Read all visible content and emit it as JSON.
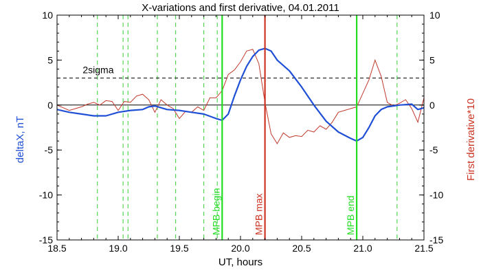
{
  "chart_data": {
    "type": "line",
    "title": "X-variations and first derivative, 04.01.2011",
    "xlabel": "UT, hours",
    "ylabel_left": "deltaX, nT",
    "ylabel_right": "First derivative*10",
    "xlim": [
      18.5,
      21.5
    ],
    "ylim": [
      -15,
      10
    ],
    "x_ticks": [
      18.5,
      19.0,
      19.5,
      20.0,
      20.5,
      21.0,
      21.5
    ],
    "x_tick_labels": [
      "18.5",
      "19.0",
      "19.5",
      "20.0",
      "20.5",
      "21.0",
      "21.5"
    ],
    "y_ticks": [
      -15,
      -10,
      -5,
      0,
      5,
      10
    ],
    "y_tick_labels": [
      "-15",
      "-10",
      "-5",
      "0",
      "5",
      "10"
    ],
    "colors": {
      "deltaX": "#1f4fd6",
      "derivative": "#c0392b",
      "mpb_edges": "#22dd22",
      "mpb_max": "#cc3322",
      "dashed_green": "#33cc33",
      "axis_text_right": "#cc3322",
      "axis_text_left": "#1f4fd6"
    },
    "threshold": {
      "value": 3.0,
      "label": "2sigma",
      "style": "dashed"
    },
    "zero_line": 0,
    "dashed_vertical_lines": [
      18.83,
      19.04,
      19.08,
      19.32,
      19.47,
      19.7,
      19.81,
      21.28
    ],
    "markers": [
      {
        "x": 19.85,
        "label": "MPB begin",
        "color": "#22dd22"
      },
      {
        "x": 20.2,
        "label": "MPB max",
        "color": "#cc3322"
      },
      {
        "x": 20.95,
        "label": "MPB end",
        "color": "#22dd22"
      }
    ],
    "series": [
      {
        "key": "deltaX",
        "x": [
          18.5,
          18.6,
          18.7,
          18.8,
          18.9,
          19.0,
          19.1,
          19.2,
          19.25,
          19.3,
          19.4,
          19.5,
          19.6,
          19.7,
          19.8,
          19.85,
          19.9,
          19.95,
          20.0,
          20.05,
          20.1,
          20.15,
          20.2,
          20.25,
          20.3,
          20.4,
          20.5,
          20.6,
          20.7,
          20.8,
          20.9,
          20.95,
          21.0,
          21.05,
          21.1,
          21.15,
          21.2,
          21.3,
          21.4,
          21.45,
          21.5
        ],
        "y": [
          -0.5,
          -0.8,
          -1.0,
          -1.2,
          -1.2,
          -0.8,
          -0.6,
          -0.5,
          -0.2,
          -0.1,
          -0.5,
          -0.6,
          -0.8,
          -1.0,
          -1.5,
          -1.7,
          -1.0,
          1.0,
          2.8,
          4.3,
          5.4,
          6.1,
          6.3,
          6.0,
          5.0,
          3.8,
          2.0,
          0.0,
          -1.8,
          -3.0,
          -3.7,
          -4.0,
          -3.6,
          -2.5,
          -1.2,
          -0.5,
          -0.2,
          0.0,
          0.1,
          -0.5,
          -0.3
        ]
      },
      {
        "key": "derivative",
        "x": [
          18.5,
          18.55,
          18.6,
          18.65,
          18.7,
          18.75,
          18.8,
          18.85,
          18.9,
          18.95,
          19.0,
          19.05,
          19.1,
          19.15,
          19.2,
          19.25,
          19.3,
          19.35,
          19.4,
          19.45,
          19.5,
          19.55,
          19.6,
          19.65,
          19.7,
          19.75,
          19.8,
          19.85,
          19.9,
          19.95,
          20.0,
          20.05,
          20.1,
          20.15,
          20.2,
          20.25,
          20.3,
          20.35,
          20.4,
          20.45,
          20.5,
          20.55,
          20.6,
          20.65,
          20.7,
          20.75,
          20.8,
          20.85,
          20.9,
          20.95,
          21.0,
          21.05,
          21.1,
          21.15,
          21.2,
          21.25,
          21.3,
          21.35,
          21.4,
          21.45,
          21.5
        ],
        "y": [
          0.0,
          -0.3,
          -0.6,
          -0.4,
          -0.2,
          0.1,
          0.3,
          0.0,
          0.5,
          0.4,
          -0.6,
          0.4,
          0.3,
          1.0,
          1.2,
          0.6,
          -0.8,
          0.6,
          0.0,
          -0.4,
          -1.5,
          -0.7,
          -0.8,
          -0.2,
          -0.6,
          0.8,
          0.8,
          1.6,
          3.4,
          3.9,
          4.8,
          6.0,
          6.2,
          4.6,
          0.3,
          -3.2,
          -4.3,
          -3.1,
          -3.6,
          -3.4,
          -3.5,
          -2.8,
          -3.0,
          -2.3,
          -2.7,
          -1.9,
          -0.8,
          -0.6,
          -0.4,
          -0.2,
          1.3,
          2.8,
          5.0,
          3.2,
          0.3,
          -0.1,
          0.2,
          0.6,
          -0.4,
          -1.9,
          0.8
        ]
      }
    ]
  }
}
